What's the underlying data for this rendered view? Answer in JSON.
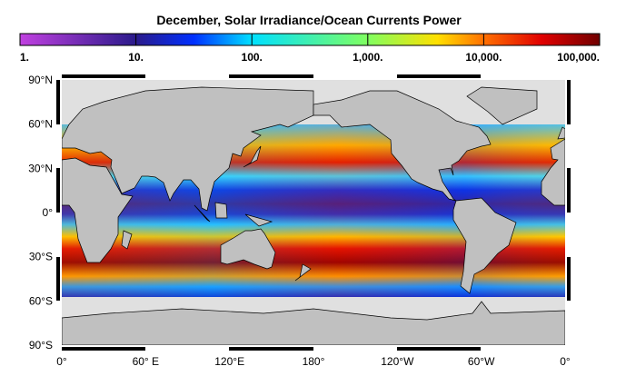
{
  "title": "December, Solar Irradiance/Ocean Currents Power",
  "colorbar": {
    "labels": [
      "1.",
      "10.",
      "100.",
      "1,000.",
      "10,000.",
      "100,000."
    ]
  },
  "latitude_labels": [
    "90°N",
    "60°N",
    "30°N",
    "0°",
    "30°S",
    "60°S",
    "90°S"
  ],
  "longitude_labels": [
    "0°",
    "60° E",
    "120°E",
    "180°",
    "120°W",
    "60°W",
    "0°"
  ]
}
